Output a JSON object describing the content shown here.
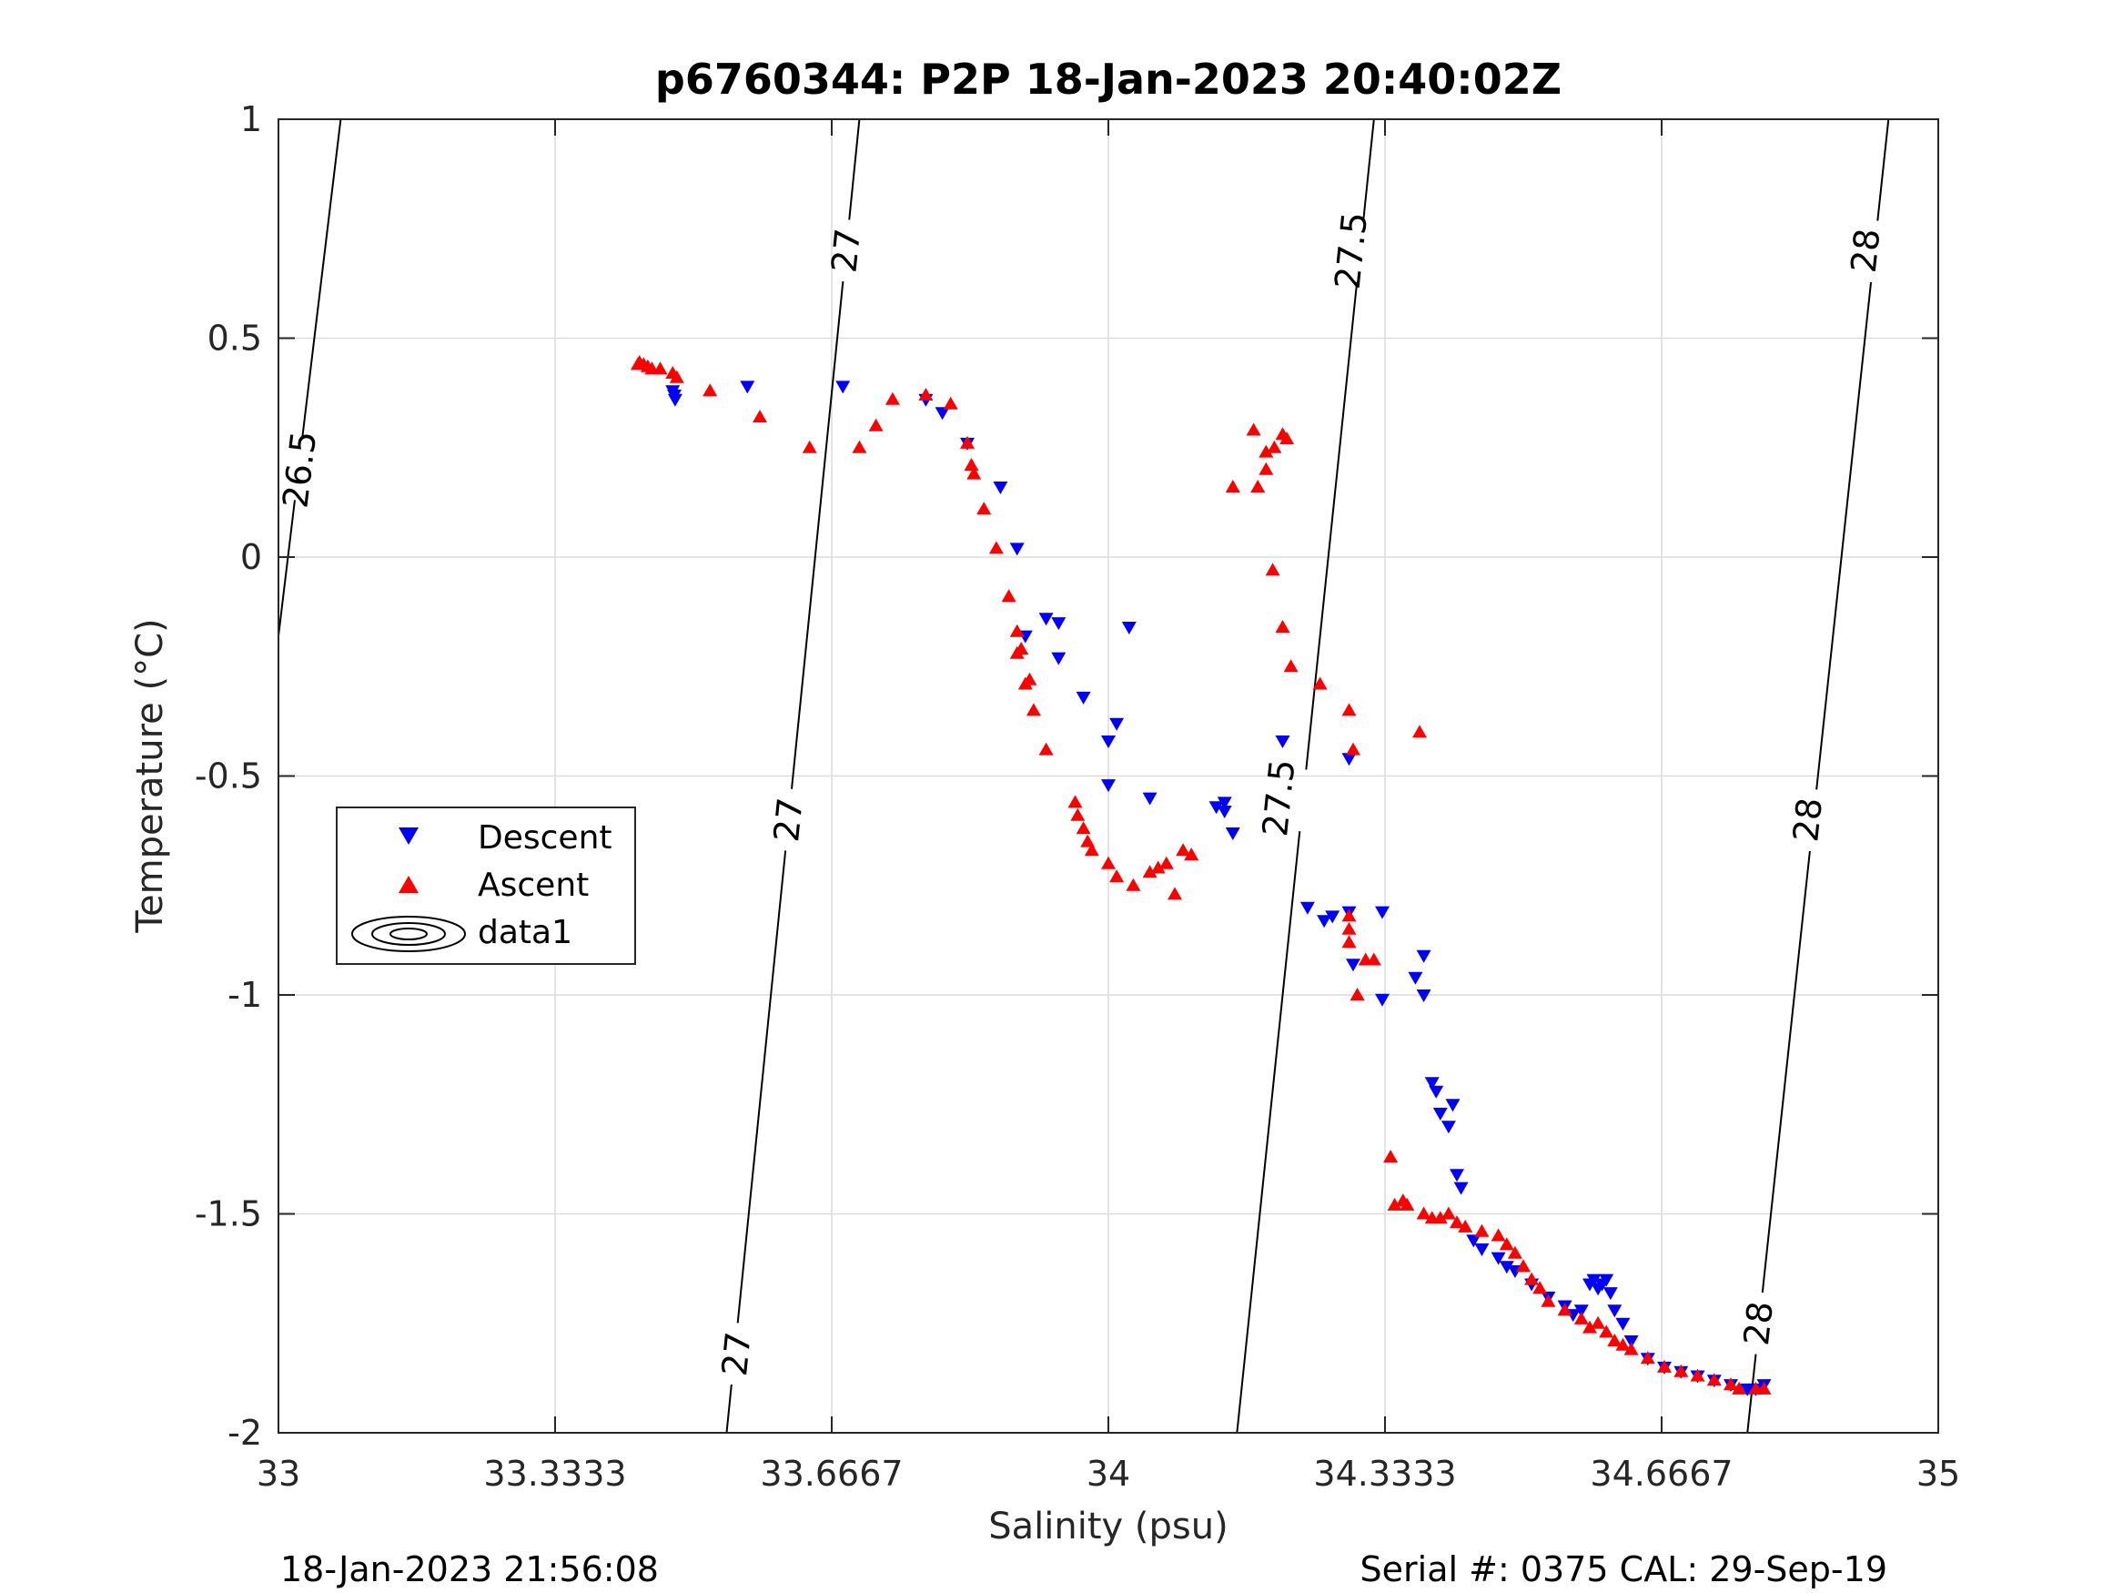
{
  "chart_data": {
    "type": "scatter",
    "title": "p6760344: P2P 18-Jan-2023 20:40:02Z",
    "xlabel": "Salinity (psu)",
    "ylabel": "Temperature (°C)",
    "xlim": [
      33,
      35
    ],
    "ylim": [
      -2,
      1
    ],
    "grid": true,
    "legend_position": "left",
    "x_ticks": [
      "33",
      "33.3333",
      "33.6667",
      "34",
      "34.3333",
      "34.6667",
      "35"
    ],
    "y_ticks": [
      "1",
      "0.5",
      "0",
      "-0.5",
      "-1",
      "-1.5",
      "-2"
    ],
    "legend": [
      "Descent",
      "Ascent",
      "data1"
    ],
    "series": [
      {
        "name": "Descent",
        "color": "#0000ff",
        "marker": "triangle-down",
        "points": [
          [
            33.475,
            0.38
          ],
          [
            33.477,
            0.37
          ],
          [
            33.478,
            0.36
          ],
          [
            33.565,
            0.39
          ],
          [
            33.68,
            0.39
          ],
          [
            33.78,
            0.36
          ],
          [
            33.8,
            0.33
          ],
          [
            33.83,
            0.26
          ],
          [
            33.87,
            0.16
          ],
          [
            33.89,
            0.02
          ],
          [
            33.9,
            -0.18
          ],
          [
            33.925,
            -0.14
          ],
          [
            33.94,
            -0.15
          ],
          [
            33.94,
            -0.23
          ],
          [
            33.97,
            -0.32
          ],
          [
            34.01,
            -0.38
          ],
          [
            34.0,
            -0.42
          ],
          [
            34.025,
            -0.16
          ],
          [
            34.0,
            -0.52
          ],
          [
            34.05,
            -0.55
          ],
          [
            34.13,
            -0.57
          ],
          [
            34.14,
            -0.56
          ],
          [
            34.14,
            -0.58
          ],
          [
            34.15,
            -0.63
          ],
          [
            34.21,
            -0.42
          ],
          [
            34.24,
            -0.8
          ],
          [
            34.26,
            -0.83
          ],
          [
            34.27,
            -0.82
          ],
          [
            34.29,
            -0.81
          ],
          [
            34.295,
            -0.93
          ],
          [
            34.29,
            -0.46
          ],
          [
            34.33,
            -0.81
          ],
          [
            34.33,
            -1.01
          ],
          [
            34.37,
            -0.96
          ],
          [
            34.38,
            -0.91
          ],
          [
            34.38,
            -1.0
          ],
          [
            34.39,
            -1.2
          ],
          [
            34.395,
            -1.22
          ],
          [
            34.4,
            -1.27
          ],
          [
            34.41,
            -1.3
          ],
          [
            34.415,
            -1.25
          ],
          [
            34.42,
            -1.41
          ],
          [
            34.425,
            -1.44
          ],
          [
            34.44,
            -1.56
          ],
          [
            34.45,
            -1.58
          ],
          [
            34.47,
            -1.6
          ],
          [
            34.48,
            -1.62
          ],
          [
            34.49,
            -1.63
          ],
          [
            34.51,
            -1.66
          ],
          [
            34.53,
            -1.69
          ],
          [
            34.55,
            -1.71
          ],
          [
            34.56,
            -1.73
          ],
          [
            34.57,
            -1.72
          ],
          [
            34.58,
            -1.66
          ],
          [
            34.585,
            -1.65
          ],
          [
            34.59,
            -1.67
          ],
          [
            34.595,
            -1.66
          ],
          [
            34.6,
            -1.65
          ],
          [
            34.605,
            -1.68
          ],
          [
            34.61,
            -1.72
          ],
          [
            34.62,
            -1.75
          ],
          [
            34.63,
            -1.79
          ],
          [
            34.65,
            -1.83
          ],
          [
            34.67,
            -1.85
          ],
          [
            34.69,
            -1.86
          ],
          [
            34.71,
            -1.87
          ],
          [
            34.73,
            -1.88
          ],
          [
            34.75,
            -1.89
          ],
          [
            34.77,
            -1.9
          ],
          [
            34.78,
            -1.9
          ],
          [
            34.79,
            -1.89
          ]
        ]
      },
      {
        "name": "Ascent",
        "color": "#ff0000",
        "marker": "triangle-up",
        "points": [
          [
            33.433,
            0.44
          ],
          [
            33.435,
            0.445
          ],
          [
            33.44,
            0.44
          ],
          [
            33.445,
            0.435
          ],
          [
            33.45,
            0.43
          ],
          [
            33.46,
            0.43
          ],
          [
            33.475,
            0.42
          ],
          [
            33.48,
            0.41
          ],
          [
            33.52,
            0.38
          ],
          [
            33.58,
            0.32
          ],
          [
            33.64,
            0.25
          ],
          [
            33.7,
            0.25
          ],
          [
            33.72,
            0.3
          ],
          [
            33.74,
            0.36
          ],
          [
            33.78,
            0.37
          ],
          [
            33.81,
            0.35
          ],
          [
            33.83,
            0.26
          ],
          [
            33.835,
            0.21
          ],
          [
            33.838,
            0.19
          ],
          [
            33.85,
            0.11
          ],
          [
            33.865,
            0.02
          ],
          [
            33.88,
            -0.09
          ],
          [
            33.89,
            -0.17
          ],
          [
            33.89,
            -0.22
          ],
          [
            33.895,
            -0.21
          ],
          [
            33.9,
            -0.29
          ],
          [
            33.905,
            -0.28
          ],
          [
            33.91,
            -0.35
          ],
          [
            33.925,
            -0.44
          ],
          [
            33.96,
            -0.56
          ],
          [
            33.963,
            -0.59
          ],
          [
            33.97,
            -0.62
          ],
          [
            33.975,
            -0.65
          ],
          [
            33.98,
            -0.67
          ],
          [
            34.0,
            -0.7
          ],
          [
            34.01,
            -0.73
          ],
          [
            34.03,
            -0.75
          ],
          [
            34.05,
            -0.72
          ],
          [
            34.06,
            -0.71
          ],
          [
            34.07,
            -0.7
          ],
          [
            34.08,
            -0.77
          ],
          [
            34.09,
            -0.67
          ],
          [
            34.1,
            -0.68
          ],
          [
            34.15,
            0.16
          ],
          [
            34.175,
            0.29
          ],
          [
            34.18,
            0.16
          ],
          [
            34.19,
            0.24
          ],
          [
            34.19,
            0.2
          ],
          [
            34.2,
            0.25
          ],
          [
            34.21,
            0.28
          ],
          [
            34.215,
            0.27
          ],
          [
            34.198,
            -0.03
          ],
          [
            34.21,
            -0.16
          ],
          [
            34.22,
            -0.25
          ],
          [
            34.255,
            -0.29
          ],
          [
            34.29,
            -0.35
          ],
          [
            34.295,
            -0.44
          ],
          [
            34.375,
            -0.4
          ],
          [
            34.29,
            -0.82
          ],
          [
            34.29,
            -0.85
          ],
          [
            34.29,
            -0.88
          ],
          [
            34.3,
            -1.0
          ],
          [
            34.31,
            -0.92
          ],
          [
            34.32,
            -0.92
          ],
          [
            34.34,
            -1.37
          ],
          [
            34.345,
            -1.48
          ],
          [
            34.355,
            -1.47
          ],
          [
            34.36,
            -1.48
          ],
          [
            34.38,
            -1.5
          ],
          [
            34.39,
            -1.51
          ],
          [
            34.4,
            -1.51
          ],
          [
            34.41,
            -1.5
          ],
          [
            34.42,
            -1.52
          ],
          [
            34.43,
            -1.53
          ],
          [
            34.45,
            -1.54
          ],
          [
            34.47,
            -1.55
          ],
          [
            34.48,
            -1.57
          ],
          [
            34.49,
            -1.59
          ],
          [
            34.5,
            -1.62
          ],
          [
            34.51,
            -1.65
          ],
          [
            34.52,
            -1.67
          ],
          [
            34.53,
            -1.7
          ],
          [
            34.55,
            -1.72
          ],
          [
            34.57,
            -1.74
          ],
          [
            34.58,
            -1.76
          ],
          [
            34.59,
            -1.75
          ],
          [
            34.6,
            -1.77
          ],
          [
            34.61,
            -1.79
          ],
          [
            34.62,
            -1.8
          ],
          [
            34.63,
            -1.81
          ],
          [
            34.65,
            -1.83
          ],
          [
            34.67,
            -1.85
          ],
          [
            34.69,
            -1.86
          ],
          [
            34.71,
            -1.87
          ],
          [
            34.73,
            -1.88
          ],
          [
            34.75,
            -1.89
          ],
          [
            34.76,
            -1.9
          ],
          [
            34.78,
            -1.9
          ],
          [
            34.79,
            -1.9
          ]
        ]
      }
    ],
    "contours": [
      {
        "label": "26.5",
        "points": [
          [
            33.0,
            -0.18
          ],
          [
            33.075,
            1.0
          ]
        ],
        "labels": [
          {
            "s": 33.0255,
            "t": 0.2
          }
        ]
      },
      {
        "label": "27",
        "points": [
          [
            33.54,
            -2.0
          ],
          [
            33.7,
            1.0
          ]
        ],
        "labels": [
          {
            "s": 33.552,
            "t": -1.82
          },
          {
            "s": 33.6145,
            "t": -0.6
          },
          {
            "s": 33.684,
            "t": 0.7
          }
        ]
      },
      {
        "label": "27.5",
        "points": [
          [
            34.155,
            -2.0
          ],
          [
            34.32,
            1.0
          ]
        ],
        "labels": [
          {
            "s": 34.2055,
            "t": -0.55
          },
          {
            "s": 34.2925,
            "t": 0.7
          }
        ]
      },
      {
        "label": "28",
        "points": [
          [
            34.77,
            -2.0
          ],
          [
            34.94,
            1.0
          ]
        ],
        "labels": [
          {
            "s": 34.7834,
            "t": -1.75
          },
          {
            "s": 34.8428,
            "t": -0.6
          },
          {
            "s": 34.9124,
            "t": 0.7
          }
        ]
      }
    ],
    "footer_left": "18-Jan-2023 21:56:08",
    "footer_right": "Serial #: 0375  CAL: 29-Sep-19"
  }
}
